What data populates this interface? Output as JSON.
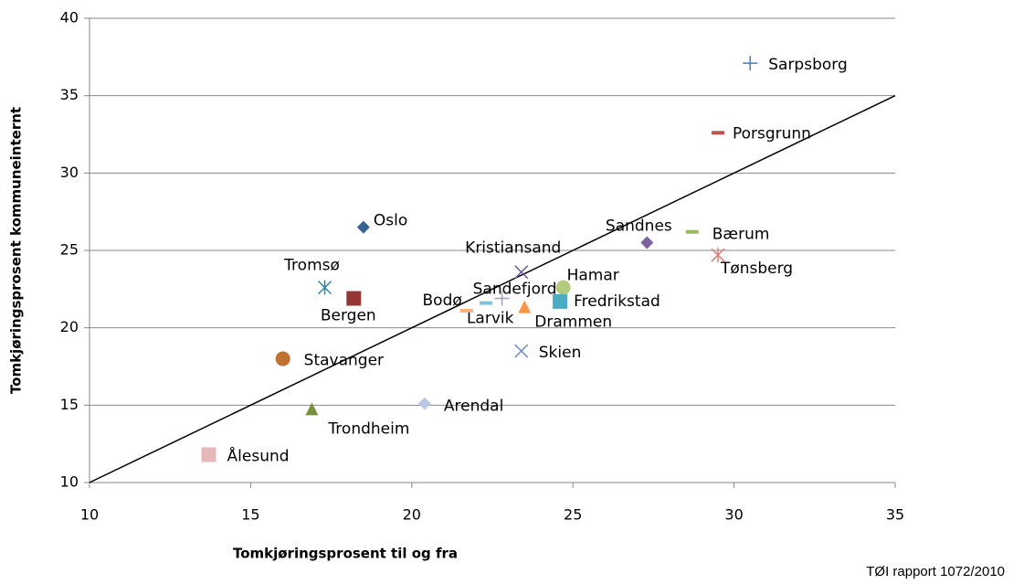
{
  "chart_data": {
    "type": "scatter",
    "x_label": "Tomkjøringsprosent til og fra",
    "y_label": "Tomkjøringsprosent kommuneinternt",
    "source": "TØI rapport 1072/2010",
    "xlim": [
      10,
      35
    ],
    "xticks": [
      10,
      15,
      20,
      25,
      30,
      35
    ],
    "ylim": [
      10,
      40
    ],
    "yticks": [
      10,
      15,
      20,
      25,
      30,
      35,
      40
    ],
    "grid": true,
    "diagonal_line": true,
    "series": [
      {
        "name": "Sarpsborg",
        "color": "#4a7cc4",
        "marker": "plus",
        "x": [
          30.5
        ],
        "values": [
          37.1
        ]
      },
      {
        "name": "Porsgrunn",
        "color": "#c0504d",
        "marker": "dash",
        "x": [
          29.5
        ],
        "values": [
          32.6
        ]
      },
      {
        "name": "Oslo",
        "color": "#366092",
        "marker": "diamond",
        "x": [
          18.5
        ],
        "values": [
          26.5
        ]
      },
      {
        "name": "Sandnes",
        "color": "#7e60a0",
        "marker": "diamond",
        "x": [
          27.3
        ],
        "values": [
          25.5
        ]
      },
      {
        "name": "Bærum",
        "color": "#9bbb59",
        "marker": "dash",
        "x": [
          28.7
        ],
        "values": [
          26.2
        ]
      },
      {
        "name": "Tønsberg",
        "color": "#d9807e",
        "marker": "asterisk",
        "x": [
          29.5
        ],
        "values": [
          24.7
        ]
      },
      {
        "name": "Kristiansand",
        "color": "#6d5a96",
        "marker": "x",
        "x": [
          23.4
        ],
        "values": [
          23.6
        ]
      },
      {
        "name": "Tromsø",
        "color": "#31859c",
        "marker": "asterisk",
        "x": [
          17.3
        ],
        "values": [
          22.6
        ]
      },
      {
        "name": "Bergen",
        "color": "#953735",
        "marker": "square",
        "x": [
          18.2
        ],
        "values": [
          21.9
        ]
      },
      {
        "name": "Hamar",
        "color": "#b3cc7c",
        "marker": "circle",
        "x": [
          24.7
        ],
        "values": [
          22.6
        ]
      },
      {
        "name": "Fredrikstad",
        "color": "#4aacc6",
        "marker": "square",
        "x": [
          24.6
        ],
        "values": [
          21.7
        ]
      },
      {
        "name": "Sandefjord",
        "color": "#a99bc4",
        "marker": "plus",
        "x": [
          22.8
        ],
        "values": [
          21.9
        ]
      },
      {
        "name": "Larvik",
        "color": "#7cc4dc",
        "marker": "dash",
        "x": [
          22.3
        ],
        "values": [
          21.6
        ]
      },
      {
        "name": "Bodø",
        "color": "#f7b07a",
        "marker": "dash",
        "x": [
          21.7
        ],
        "values": [
          21.1
        ]
      },
      {
        "name": "Drammen",
        "color": "#f79646",
        "marker": "triangle",
        "x": [
          23.5
        ],
        "values": [
          21.3
        ]
      },
      {
        "name": "Skien",
        "color": "#6f8bbd",
        "marker": "x",
        "x": [
          23.4
        ],
        "values": [
          18.5
        ]
      },
      {
        "name": "Stavanger",
        "color": "#c0712f",
        "marker": "circle",
        "x": [
          16.0
        ],
        "values": [
          18.0
        ]
      },
      {
        "name": "Arendal",
        "color": "#b9c8e4",
        "marker": "diamond",
        "x": [
          20.4
        ],
        "values": [
          15.1
        ]
      },
      {
        "name": "Trondheim",
        "color": "#76923c",
        "marker": "triangle",
        "x": [
          16.9
        ],
        "values": [
          14.7
        ]
      },
      {
        "name": "Ålesund",
        "color": "#e6b9b8",
        "marker": "square",
        "x": [
          13.7
        ],
        "values": [
          11.8
        ]
      }
    ]
  }
}
